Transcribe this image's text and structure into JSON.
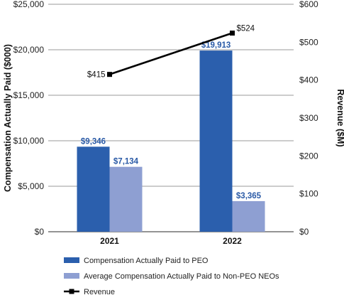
{
  "chart_data": {
    "type": "bar",
    "categories": [
      "2021",
      "2022"
    ],
    "series": [
      {
        "name": "Compensation Actually Paid to PEO",
        "values": [
          9346,
          19913
        ],
        "labels": [
          "$9,346",
          "$19,913"
        ],
        "color": "#2b5fad",
        "axis": "left"
      },
      {
        "name": "Average Compensation Actually Paid to Non-PEO NEOs",
        "values": [
          7134,
          3365
        ],
        "labels": [
          "$7,134",
          "$3,365"
        ],
        "color": "#8e9fd2",
        "axis": "left"
      },
      {
        "name": "Revenue",
        "type": "line",
        "values": [
          415,
          524
        ],
        "labels": [
          "$415",
          "$524"
        ],
        "color": "#000000",
        "axis": "right"
      }
    ],
    "ylabel": "Compensation Actually Paid ($000)",
    "y2label": "Revenue ($M)",
    "ylim": [
      0,
      25000
    ],
    "y2lim": [
      0,
      600
    ],
    "yticks": [
      "$0",
      "$5,000",
      "$10,000",
      "$15,000",
      "$20,000",
      "$25,000"
    ],
    "y2ticks": [
      "$0",
      "$100",
      "$200",
      "$300",
      "$400",
      "$500",
      "$600"
    ],
    "grid": true,
    "legend_position": "bottom"
  }
}
